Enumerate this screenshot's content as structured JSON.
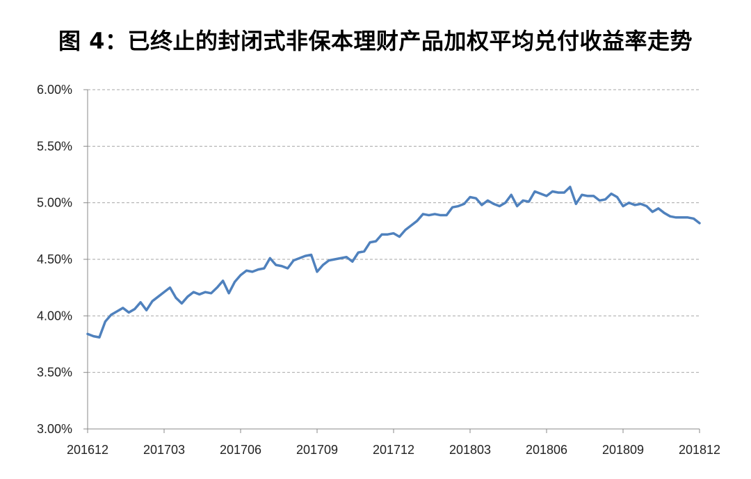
{
  "chart_data": {
    "type": "line",
    "title": "图 4：已终止的封闭式非保本理财产品加权平均兑付收益率走势",
    "xlabel": "",
    "ylabel": "",
    "ylim": [
      3.0,
      6.0
    ],
    "yticks": [
      3.0,
      3.5,
      4.0,
      4.5,
      5.0,
      5.5,
      6.0
    ],
    "ytick_labels": [
      "3.00%",
      "3.50%",
      "4.00%",
      "4.50%",
      "5.00%",
      "5.50%",
      "6.00%"
    ],
    "xtick_labels": [
      "201612",
      "201703",
      "201706",
      "201709",
      "201712",
      "201803",
      "201806",
      "201809",
      "201812"
    ],
    "grid": "horizontal dashed",
    "legend": "none",
    "line_color": "#4F81BD",
    "series": [
      {
        "values": [
          3.84,
          3.82,
          3.81,
          3.95,
          4.01,
          4.04,
          4.07,
          4.03,
          4.06,
          4.12,
          4.05,
          4.13,
          4.17,
          4.21,
          4.25,
          4.16,
          4.11,
          4.17,
          4.21,
          4.19,
          4.21,
          4.2,
          4.25,
          4.31,
          4.2,
          4.3,
          4.36,
          4.4,
          4.39,
          4.41,
          4.42,
          4.51,
          4.45,
          4.44,
          4.42,
          4.49,
          4.51,
          4.53,
          4.54,
          4.39,
          4.45,
          4.49,
          4.5,
          4.51,
          4.52,
          4.48,
          4.56,
          4.57,
          4.65,
          4.66,
          4.72,
          4.72,
          4.73,
          4.7,
          4.76,
          4.8,
          4.84,
          4.9,
          4.89,
          4.9,
          4.89,
          4.89,
          4.96,
          4.97,
          4.99,
          5.05,
          5.04,
          4.98,
          5.02,
          4.99,
          4.97,
          5.0,
          5.07,
          4.97,
          5.02,
          5.01,
          5.1,
          5.08,
          5.06,
          5.1,
          5.09,
          5.09,
          5.14,
          4.99,
          5.07,
          5.06,
          5.06,
          5.02,
          5.03,
          5.08,
          5.05,
          4.97,
          5.0,
          4.98,
          4.99,
          4.97,
          4.92,
          4.95,
          4.91,
          4.88,
          4.87,
          4.87,
          4.87,
          4.86,
          4.82
        ]
      }
    ]
  }
}
